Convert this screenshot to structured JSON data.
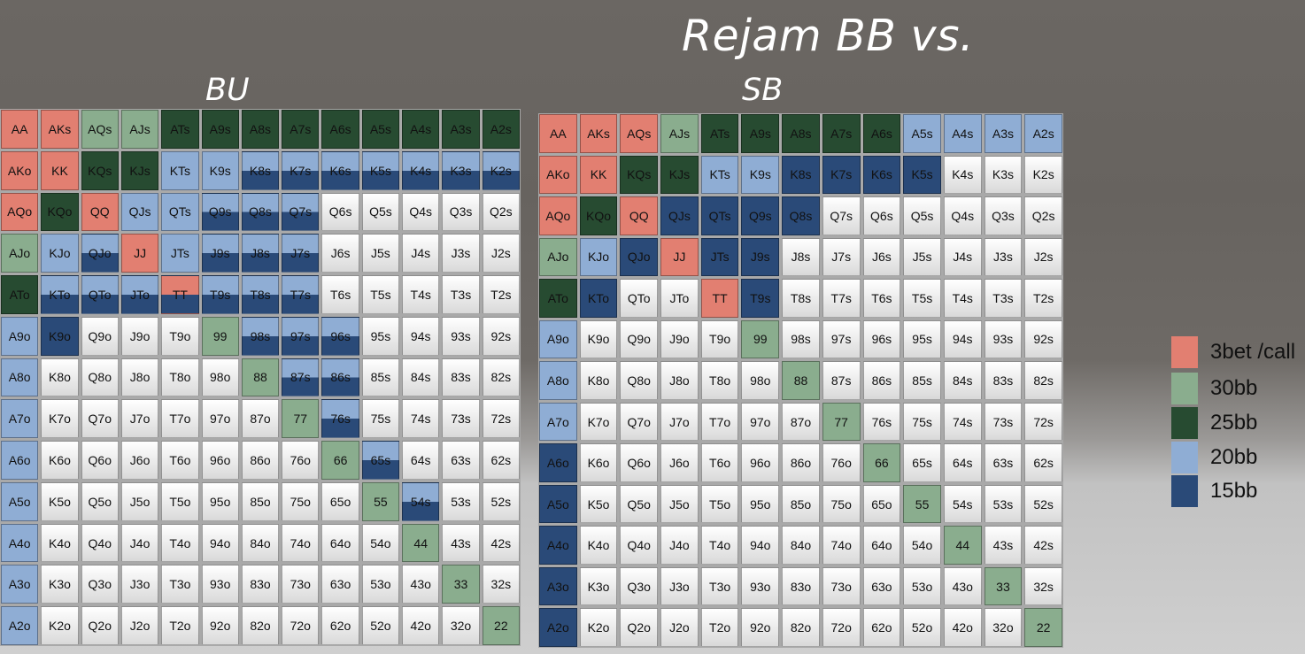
{
  "title": "Rejam BB vs.",
  "panels": [
    {
      "label": "BU",
      "cells": [
        [
          "3",
          "3",
          "30",
          "30",
          "25",
          "25",
          "25",
          "25",
          "25",
          "25",
          "25",
          "25",
          "25"
        ],
        [
          "3",
          "3",
          "25",
          "25",
          "20",
          "20",
          "h20",
          "h20",
          "h20",
          "h20",
          "h20",
          "h20",
          "h20"
        ],
        [
          "3",
          "25",
          "3",
          "20",
          "20",
          "h20",
          "h20",
          "h20",
          "w",
          "w",
          "w",
          "w",
          "w"
        ],
        [
          "30",
          "20",
          "h20",
          "3",
          "20",
          "h20",
          "h20",
          "h20",
          "w",
          "w",
          "w",
          "w",
          "w"
        ],
        [
          "25",
          "h20",
          "h20",
          "h20",
          "h3",
          "h20",
          "h20",
          "h20",
          "w",
          "w",
          "w",
          "w",
          "w"
        ],
        [
          "20",
          "15",
          "w",
          "w",
          "w",
          "30",
          "h20",
          "h20",
          "h20",
          "w",
          "w",
          "w",
          "w"
        ],
        [
          "20",
          "w",
          "w",
          "w",
          "w",
          "w",
          "30",
          "h20",
          "h20",
          "w",
          "w",
          "w",
          "w"
        ],
        [
          "20",
          "w",
          "w",
          "w",
          "w",
          "w",
          "w",
          "30",
          "h20",
          "w",
          "w",
          "w",
          "w"
        ],
        [
          "20",
          "w",
          "w",
          "w",
          "w",
          "w",
          "w",
          "w",
          "30",
          "h20",
          "w",
          "w",
          "w"
        ],
        [
          "20",
          "w",
          "w",
          "w",
          "w",
          "w",
          "w",
          "w",
          "w",
          "30",
          "h20",
          "w",
          "w"
        ],
        [
          "20",
          "w",
          "w",
          "w",
          "w",
          "w",
          "w",
          "w",
          "w",
          "w",
          "30",
          "w",
          "w"
        ],
        [
          "20",
          "w",
          "w",
          "w",
          "w",
          "w",
          "w",
          "w",
          "w",
          "w",
          "w",
          "30",
          "w"
        ],
        [
          "20",
          "w",
          "w",
          "w",
          "w",
          "w",
          "w",
          "w",
          "w",
          "w",
          "w",
          "w",
          "30"
        ]
      ]
    },
    {
      "label": "SB",
      "cells": [
        [
          "3",
          "3",
          "3",
          "30",
          "25",
          "25",
          "25",
          "25",
          "25",
          "20",
          "20",
          "20",
          "20"
        ],
        [
          "3",
          "3",
          "25",
          "25",
          "20",
          "20",
          "15",
          "15",
          "15",
          "15",
          "w",
          "w",
          "w"
        ],
        [
          "3",
          "25",
          "3",
          "15",
          "15",
          "15",
          "15",
          "w",
          "w",
          "w",
          "w",
          "w",
          "w"
        ],
        [
          "30",
          "20",
          "15",
          "3",
          "15",
          "15",
          "w",
          "w",
          "w",
          "w",
          "w",
          "w",
          "w"
        ],
        [
          "25",
          "15",
          "w",
          "w",
          "3",
          "15",
          "w",
          "w",
          "w",
          "w",
          "w",
          "w",
          "w"
        ],
        [
          "20",
          "w",
          "w",
          "w",
          "w",
          "30",
          "w",
          "w",
          "w",
          "w",
          "w",
          "w",
          "w"
        ],
        [
          "20",
          "w",
          "w",
          "w",
          "w",
          "w",
          "30",
          "w",
          "w",
          "w",
          "w",
          "w",
          "w"
        ],
        [
          "20",
          "w",
          "w",
          "w",
          "w",
          "w",
          "w",
          "30",
          "w",
          "w",
          "w",
          "w",
          "w"
        ],
        [
          "15",
          "w",
          "w",
          "w",
          "w",
          "w",
          "w",
          "w",
          "30",
          "w",
          "w",
          "w",
          "w"
        ],
        [
          "15",
          "w",
          "w",
          "w",
          "w",
          "w",
          "w",
          "w",
          "w",
          "30",
          "w",
          "w",
          "w"
        ],
        [
          "15",
          "w",
          "w",
          "w",
          "w",
          "w",
          "w",
          "w",
          "w",
          "w",
          "30",
          "w",
          "w"
        ],
        [
          "15",
          "w",
          "w",
          "w",
          "w",
          "w",
          "w",
          "w",
          "w",
          "w",
          "w",
          "30",
          "w"
        ],
        [
          "15",
          "w",
          "w",
          "w",
          "w",
          "w",
          "w",
          "w",
          "w",
          "w",
          "w",
          "w",
          "30"
        ]
      ]
    }
  ],
  "ranks": [
    "A",
    "K",
    "Q",
    "J",
    "T",
    "9",
    "8",
    "7",
    "6",
    "5",
    "4",
    "3",
    "2"
  ],
  "legend": [
    {
      "label": "3bet /call",
      "color": "#e27f71"
    },
    {
      "label": "30bb",
      "color": "#8aad8e"
    },
    {
      "label": "25bb",
      "color": "#274b31"
    },
    {
      "label": "20bb",
      "color": "#8fadd4"
    },
    {
      "label": "15bb",
      "color": "#2a4a78"
    }
  ]
}
